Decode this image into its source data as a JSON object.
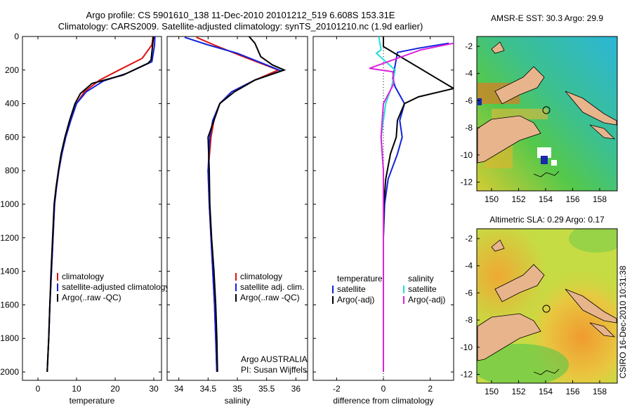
{
  "titles": {
    "line1": "Argo profile: CS 5901610_138 11-Dec-2010 20101212_519 6.608S 153.31E",
    "line2": "Climatology: CARS2009. Satellite-adjusted climatology: synTS_20101210.nc (1.9d earlier)"
  },
  "side_label": "CSIRO 16-Dec-2010 10:31:38",
  "colors": {
    "climatology": "#dd1111",
    "satellite": "#1122dd",
    "argo": "#000000",
    "salinity_satellite": "#22dddd",
    "salinity_argo": "#dd22dd"
  },
  "chart_data": [
    {
      "type": "line",
      "xlabel": "temperature",
      "ylabel": "",
      "xlim": [
        -4,
        32
      ],
      "ylim": [
        2050,
        0
      ],
      "xticks": [
        "0",
        "10",
        "20",
        "30"
      ],
      "yticks": [
        "0",
        "200",
        "400",
        "600",
        "800",
        "1000",
        "1200",
        "1400",
        "1600",
        "1800",
        "2000"
      ],
      "legend_position": "bottom-right",
      "legend": [
        "climatology",
        "satellite-adjusted climatology",
        "Argo(..raw -QC)"
      ],
      "series": [
        {
          "name": "climatology",
          "color": "#dd1111",
          "points": [
            [
              29.8,
              0
            ],
            [
              29.5,
              50
            ],
            [
              27,
              130
            ],
            [
              21,
              200
            ],
            [
              16,
              260
            ],
            [
              12,
              330
            ],
            [
              10,
              400
            ],
            [
              8.5,
              500
            ],
            [
              7.2,
              600
            ],
            [
              6.2,
              700
            ],
            [
              5.4,
              800
            ],
            [
              4.8,
              900
            ],
            [
              4.3,
              1000
            ],
            [
              3.9,
              1200
            ],
            [
              3.5,
              1400
            ],
            [
              3.1,
              1600
            ],
            [
              2.8,
              1800
            ],
            [
              2.4,
              2000
            ]
          ]
        },
        {
          "name": "satellite-adjusted climatology",
          "color": "#1122dd",
          "points": [
            [
              30.3,
              0
            ],
            [
              30.2,
              50
            ],
            [
              29.5,
              150
            ],
            [
              23,
              220
            ],
            [
              17,
              265
            ],
            [
              12.5,
              330
            ],
            [
              10,
              400
            ],
            [
              8.5,
              500
            ],
            [
              7.2,
              600
            ],
            [
              6.2,
              700
            ],
            [
              5.4,
              800
            ],
            [
              4.8,
              900
            ],
            [
              4.3,
              1000
            ],
            [
              3.9,
              1200
            ],
            [
              3.5,
              1400
            ],
            [
              3.1,
              1600
            ],
            [
              2.8,
              1800
            ],
            [
              2.4,
              2000
            ]
          ]
        },
        {
          "name": "Argo(..raw -QC)",
          "color": "#000000",
          "points": [
            [
              29.9,
              0
            ],
            [
              29.8,
              30
            ],
            [
              29.3,
              140
            ],
            [
              28.5,
              160
            ],
            [
              22,
              230
            ],
            [
              14,
              280
            ],
            [
              11,
              340
            ],
            [
              9.6,
              400
            ],
            [
              8.2,
              500
            ],
            [
              7,
              600
            ],
            [
              6,
              700
            ],
            [
              5.3,
              800
            ],
            [
              4.7,
              900
            ],
            [
              4.2,
              1000
            ],
            [
              3.8,
              1200
            ],
            [
              3.4,
              1400
            ],
            [
              3.1,
              1600
            ],
            [
              2.8,
              1800
            ],
            [
              2.4,
              2000
            ]
          ]
        }
      ]
    },
    {
      "type": "line",
      "xlabel": "salinity",
      "ylabel": "",
      "xlim": [
        33.8,
        36.2
      ],
      "ylim": [
        2050,
        0
      ],
      "xticks": [
        "34",
        "34.5",
        "35",
        "35.5",
        "36"
      ],
      "legend_position": "bottom-right",
      "legend": [
        "climatology",
        "satellite adj. clim.",
        "Argo(..raw -QC)"
      ],
      "notes": [
        "Argo AUSTRALIA",
        "PI: Susan Wijffels"
      ],
      "series": [
        {
          "name": "climatology",
          "color": "#dd1111",
          "points": [
            [
              34.3,
              5
            ],
            [
              34.6,
              50
            ],
            [
              35.1,
              120
            ],
            [
              35.7,
              200
            ],
            [
              35.3,
              260
            ],
            [
              34.9,
              330
            ],
            [
              34.7,
              400
            ],
            [
              34.6,
              500
            ],
            [
              34.55,
              600
            ],
            [
              34.5,
              800
            ],
            [
              34.52,
              1000
            ],
            [
              34.55,
              1200
            ],
            [
              34.58,
              1400
            ],
            [
              34.61,
              1600
            ],
            [
              34.63,
              1800
            ],
            [
              34.65,
              2000
            ]
          ]
        },
        {
          "name": "satellite adj. clim.",
          "color": "#1122dd",
          "points": [
            [
              34.1,
              5
            ],
            [
              34.5,
              50
            ],
            [
              35.0,
              100
            ],
            [
              35.5,
              170
            ],
            [
              35.75,
              205
            ],
            [
              35.3,
              260
            ],
            [
              34.9,
              330
            ],
            [
              34.7,
              400
            ],
            [
              34.58,
              500
            ],
            [
              34.53,
              600
            ],
            [
              34.5,
              800
            ],
            [
              34.52,
              1000
            ],
            [
              34.55,
              1200
            ],
            [
              34.58,
              1400
            ],
            [
              34.61,
              1600
            ],
            [
              34.63,
              1800
            ],
            [
              34.65,
              2000
            ]
          ]
        },
        {
          "name": "Argo(..raw -QC)",
          "color": "#000000",
          "points": [
            [
              35.2,
              0
            ],
            [
              35.3,
              40
            ],
            [
              35.4,
              120
            ],
            [
              35.6,
              170
            ],
            [
              35.8,
              200
            ],
            [
              35.3,
              260
            ],
            [
              34.95,
              330
            ],
            [
              34.7,
              400
            ],
            [
              34.6,
              500
            ],
            [
              34.5,
              600
            ],
            [
              34.52,
              800
            ],
            [
              34.53,
              1000
            ],
            [
              34.56,
              1200
            ],
            [
              34.6,
              1400
            ],
            [
              34.63,
              1600
            ],
            [
              34.65,
              1800
            ],
            [
              34.66,
              2000
            ]
          ]
        }
      ]
    },
    {
      "type": "line",
      "xlabel": "difference from climatology",
      "ylabel": "",
      "xlim": [
        -3,
        3
      ],
      "ylim": [
        2050,
        0
      ],
      "xticks": [
        "-2",
        "0",
        "2"
      ],
      "legend_position": "bottom",
      "legend": [
        "temperature",
        "satellite",
        "Argo(-adj)",
        "salinity",
        "satellite",
        "Argo(-adj)"
      ],
      "series": [
        {
          "name": "satellite",
          "group": "temperature",
          "color": "#1122dd",
          "points": [
            [
              2.8,
              40
            ],
            [
              1.5,
              70
            ],
            [
              0.6,
              95
            ],
            [
              0.4,
              250
            ],
            [
              0.5,
              300
            ],
            [
              0.9,
              400
            ],
            [
              0.7,
              500
            ],
            [
              0.8,
              600
            ],
            [
              0.6,
              700
            ],
            [
              0.2,
              850
            ],
            [
              0.05,
              1000
            ],
            [
              0,
              1200
            ],
            [
              0,
              2000
            ]
          ]
        },
        {
          "name": "Argo(-adj)",
          "group": "temperature",
          "color": "#000000",
          "points": [
            [
              0,
              0
            ],
            [
              0,
              60
            ],
            [
              3,
              310
            ],
            [
              1.5,
              360
            ],
            [
              0.9,
              400
            ],
            [
              0.6,
              500
            ],
            [
              0.55,
              600
            ],
            [
              0.3,
              700
            ],
            [
              0.1,
              850
            ],
            [
              0.02,
              1000
            ],
            [
              0,
              1200
            ],
            [
              0,
              2000
            ]
          ]
        },
        {
          "name": "satellite",
          "group": "salinity",
          "color": "#22dddd",
          "points": [
            [
              -0.2,
              0
            ],
            [
              -0.15,
              40
            ],
            [
              -0.1,
              80
            ],
            [
              -0.3,
              100
            ],
            [
              0.5,
              200
            ],
            [
              0.35,
              300
            ],
            [
              0.1,
              400
            ],
            [
              0,
              500
            ],
            [
              -0.1,
              600
            ],
            [
              0,
              800
            ],
            [
              0,
              1000
            ],
            [
              0,
              1400
            ],
            [
              0,
              2000
            ]
          ]
        },
        {
          "name": "Argo(-adj)",
          "group": "salinity",
          "color": "#dd22dd",
          "points": [
            [
              3,
              40
            ],
            [
              1.6,
              80
            ],
            [
              -0.6,
              190
            ],
            [
              0.4,
              210
            ],
            [
              0.45,
              280
            ],
            [
              0,
              400
            ],
            [
              -0.05,
              500
            ],
            [
              -0.1,
              600
            ],
            [
              0,
              800
            ],
            [
              0,
              1000
            ],
            [
              0,
              2000
            ]
          ]
        }
      ]
    }
  ],
  "maps": [
    {
      "title": "AMSR-E SST: 30.3 Argo: 29.9",
      "xticks": [
        "150",
        "152",
        "154",
        "156",
        "158"
      ],
      "yticks": [
        "-2",
        "-4",
        "-6",
        "-8",
        "-10",
        "-12"
      ]
    },
    {
      "title": "Altimetric SLA: 0.29 Argo: 0.17",
      "xticks": [
        "150",
        "152",
        "154",
        "156",
        "158"
      ],
      "yticks": [
        "-2",
        "-4",
        "-6",
        "-8",
        "-10",
        "-12"
      ]
    }
  ]
}
